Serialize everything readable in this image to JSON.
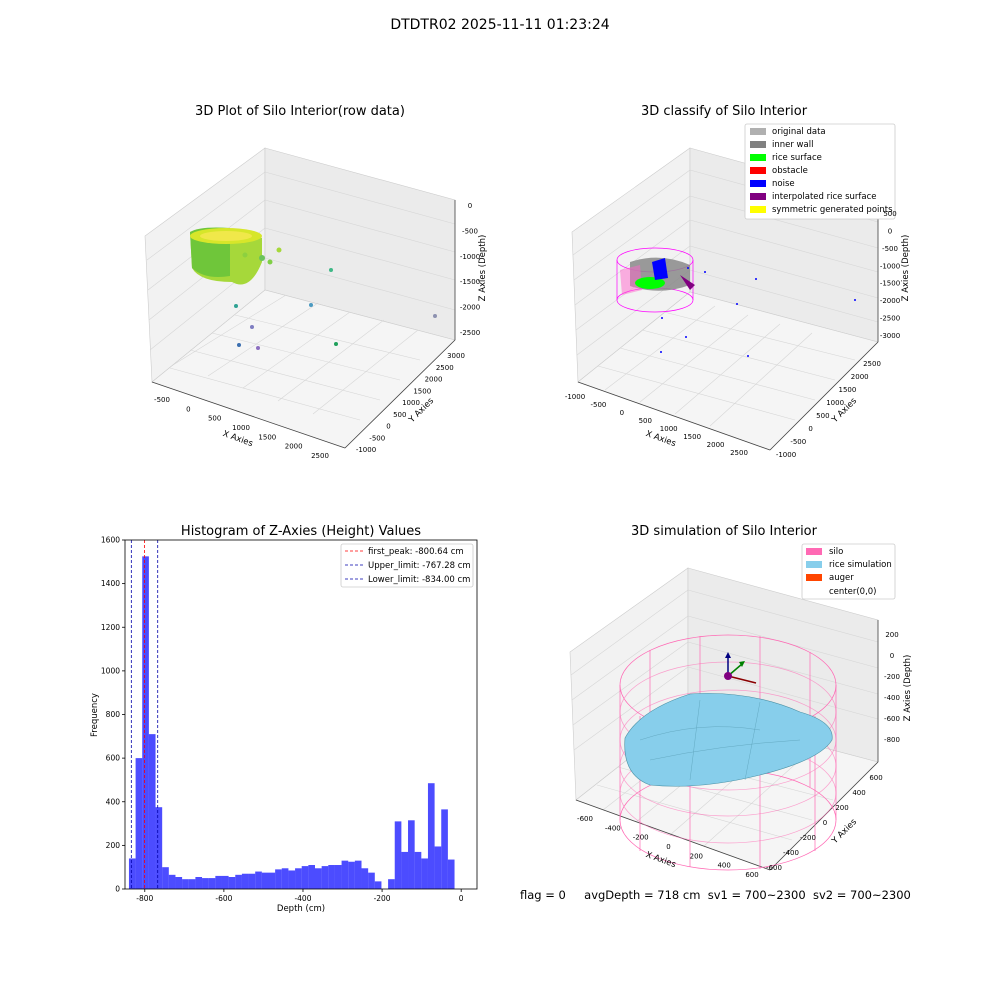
{
  "figure": {
    "title": "DTDTR02 2025-11-11 01:23:24"
  },
  "panel_raw": {
    "title": "3D Plot of Silo Interior(row data)",
    "xlabel": "X Axies",
    "ylabel": "Y Axies",
    "zlabel": "Z Axies (Depth)",
    "xticks": [
      "-500",
      "0",
      "500",
      "1000",
      "1500",
      "2000",
      "2500"
    ],
    "yticks": [
      "-1000",
      "-500",
      "0",
      "500",
      "1000",
      "1500",
      "2000",
      "2500",
      "3000"
    ],
    "zticks": [
      "0",
      "-500",
      "-1000",
      "-1500",
      "-2000",
      "-2500"
    ]
  },
  "panel_classify": {
    "title": "3D classify of Silo Interior",
    "xlabel": "X Axies",
    "ylabel": "Y Axies",
    "zlabel": "Z Axies (Depth)",
    "xticks": [
      "-1000",
      "-500",
      "0",
      "500",
      "1000",
      "1500",
      "2000",
      "2500"
    ],
    "yticks": [
      "-1000",
      "-500",
      "0",
      "500",
      "1000",
      "1500",
      "2000",
      "2500"
    ],
    "zticks": [
      "500",
      "0",
      "-500",
      "-1000",
      "-1500",
      "-2000",
      "-2500",
      "-3000"
    ],
    "legend": [
      {
        "label": "original data",
        "color": "#b0b0b0"
      },
      {
        "label": "inner wall",
        "color": "#808080"
      },
      {
        "label": "rice surface",
        "color": "#00ff00"
      },
      {
        "label": "obstacle",
        "color": "#ff0000"
      },
      {
        "label": "noise",
        "color": "#0000ff"
      },
      {
        "label": "interpolated rice surface",
        "color": "#800080"
      },
      {
        "label": "symmetric generated points",
        "color": "#ffff00"
      }
    ]
  },
  "panel_sim": {
    "title": "3D simulation of Silo Interior",
    "xlabel": "X Axies",
    "ylabel": "Y Axies",
    "zlabel": "Z Axies (Depth)",
    "xticks": [
      "-600",
      "-400",
      "-200",
      "0",
      "200",
      "400",
      "600"
    ],
    "yticks": [
      "-600",
      "-400",
      "-200",
      "0",
      "200",
      "400",
      "600"
    ],
    "zticks": [
      "200",
      "0",
      "-200",
      "-400",
      "-600",
      "-800"
    ],
    "legend": [
      {
        "label": "silo",
        "color": "#ff69b4"
      },
      {
        "label": "rice simulation",
        "color": "#87ceeb"
      },
      {
        "label": "auger",
        "color": "#ff4500"
      },
      {
        "label": "center(0,0)",
        "color": ""
      }
    ]
  },
  "status": {
    "flag": "flag = 0",
    "avg": "avgDepth = 718 cm",
    "sv1": "sv1 = 700~2300",
    "sv2": "sv2 = 700~2300"
  },
  "chart_data": {
    "type": "bar",
    "title": "Histogram of Z-Axies (Height) Values",
    "xlabel": "Depth (cm)",
    "ylabel": "Frequency",
    "xlim": [
      -850,
      40
    ],
    "ylim": [
      0,
      1600
    ],
    "xticks": [
      -800,
      -600,
      -400,
      -200,
      0
    ],
    "yticks": [
      0,
      200,
      400,
      600,
      800,
      1000,
      1200,
      1400,
      1600
    ],
    "bin_start": -840,
    "bin_width": 16.8,
    "values": [
      140,
      600,
      1525,
      710,
      375,
      100,
      65,
      55,
      45,
      45,
      55,
      50,
      50,
      60,
      60,
      55,
      65,
      70,
      70,
      80,
      75,
      75,
      90,
      95,
      85,
      95,
      105,
      110,
      95,
      105,
      110,
      110,
      130,
      125,
      130,
      95,
      75,
      35,
      0,
      45,
      310,
      170,
      315,
      170,
      140,
      485,
      195,
      365,
      135
    ],
    "color": "#0000ff",
    "vlines": [
      {
        "label": "first_peak: -800.64 cm",
        "x": -800.64,
        "color": "#ff0000"
      },
      {
        "label": "Upper_limit: -767.28 cm",
        "x": -767.28,
        "color": "#0000aa"
      },
      {
        "label": "Lower_limit: -834.00 cm",
        "x": -834.0,
        "color": "#0000aa"
      }
    ]
  }
}
